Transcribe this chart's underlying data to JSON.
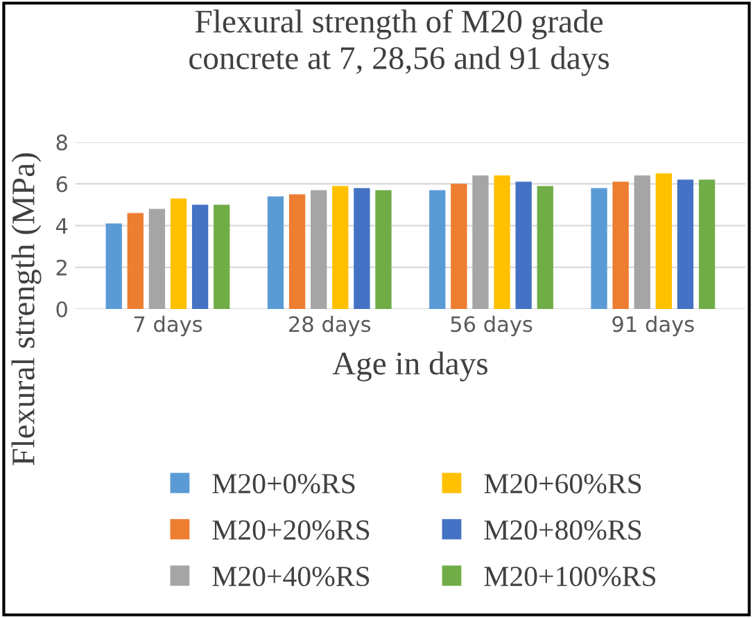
{
  "chart_data": {
    "type": "bar",
    "title": "Flexural strength of M20 grade\nconcrete at 7, 28,56 and 91 days",
    "xlabel": "Age in days",
    "ylabel": "Flexural strength (MPa)",
    "categories": [
      "7 days",
      "28 days",
      "56 days",
      "91 days"
    ],
    "series": [
      {
        "name": "M20+0%RS",
        "color": "#5b9bd5",
        "values": [
          4.1,
          5.4,
          5.7,
          5.8
        ]
      },
      {
        "name": "M20+20%RS",
        "color": "#ed7d31",
        "values": [
          4.6,
          5.5,
          6.0,
          6.1
        ]
      },
      {
        "name": "M20+40%RS",
        "color": "#a5a5a5",
        "values": [
          4.8,
          5.7,
          6.4,
          6.4
        ]
      },
      {
        "name": "M20+60%RS",
        "color": "#ffc000",
        "values": [
          5.3,
          5.9,
          6.4,
          6.5
        ]
      },
      {
        "name": "M20+80%RS",
        "color": "#4472c4",
        "values": [
          5.0,
          5.8,
          6.1,
          6.2
        ]
      },
      {
        "name": "M20+100%RS",
        "color": "#70ad47",
        "values": [
          5.0,
          5.7,
          5.9,
          6.2
        ]
      }
    ],
    "ylim": [
      0,
      8
    ],
    "yticks": [
      0,
      2,
      4,
      6,
      8
    ],
    "grid": "y",
    "legend": "bottom"
  }
}
